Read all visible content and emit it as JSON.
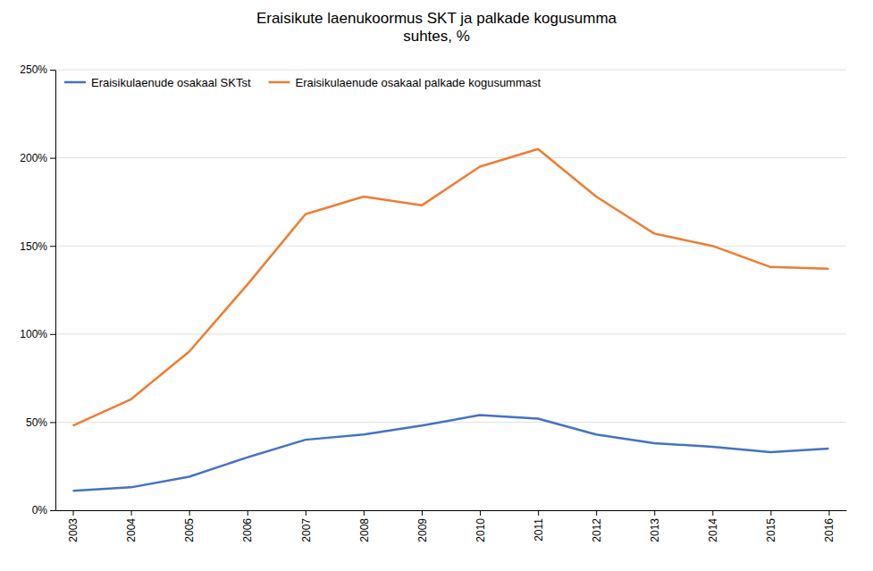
{
  "chart_data": {
    "type": "line",
    "title": "Eraisikute laenukoormus SKT ja palkade kogusumma\nsuhtes, %",
    "x": [
      2003,
      2004,
      2005,
      2006,
      2007,
      2008,
      2009,
      2010,
      2011,
      2012,
      2013,
      2014,
      2015,
      2016
    ],
    "series": [
      {
        "name": "Eraisikulaenude osakaal SKTst",
        "color": "#4472C4",
        "values": [
          0.11,
          0.13,
          0.19,
          0.3,
          0.4,
          0.43,
          0.48,
          0.54,
          0.52,
          0.43,
          0.38,
          0.36,
          0.33,
          0.35
        ]
      },
      {
        "name": "Eraisikulaenude osakaal palkade kogusummast",
        "color": "#ED7D31",
        "values": [
          0.48,
          0.63,
          0.9,
          1.28,
          1.68,
          1.78,
          1.73,
          1.95,
          2.05,
          1.78,
          1.57,
          1.5,
          1.38,
          1.37
        ]
      }
    ],
    "xlim": [
      2002.7,
      2016.3
    ],
    "xticks": [
      2003,
      2004,
      2005,
      2006,
      2007,
      2008,
      2009,
      2010,
      2011,
      2012,
      2013,
      2014,
      2015,
      2016
    ],
    "ylim": [
      0,
      2.5
    ],
    "yticks": [
      {
        "value": 0,
        "label": "0%"
      },
      {
        "value": 0.5,
        "label": "50%"
      },
      {
        "value": 1.0,
        "label": "100%"
      },
      {
        "value": 1.5,
        "label": "150%"
      },
      {
        "value": 2.0,
        "label": "200%"
      },
      {
        "value": 2.5,
        "label": "250%"
      }
    ],
    "grid": true,
    "legend": "top-left"
  }
}
